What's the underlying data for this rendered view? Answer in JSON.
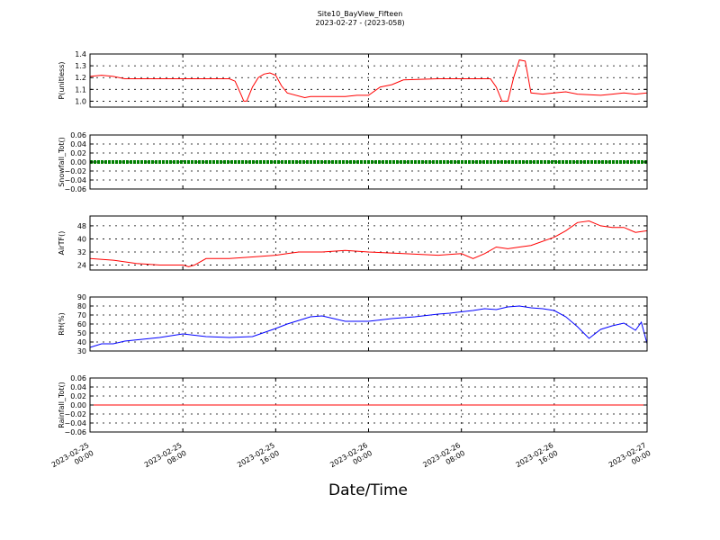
{
  "figure": {
    "title": "Site10_BayView_Fifteen",
    "subtitle": "2023-02-27 - (2023-058)",
    "xlabel": "Date/Time",
    "x_ticks": [
      {
        "value": "2023-02-25 00:00",
        "line1": "2023-02-25",
        "line2": "00:00"
      },
      {
        "value": "2023-02-25 08:00",
        "line1": "2023-02-25",
        "line2": "08:00"
      },
      {
        "value": "2023-02-25 16:00",
        "line1": "2023-02-25",
        "line2": "16:00"
      },
      {
        "value": "2023-02-26 00:00",
        "line1": "2023-02-26",
        "line2": "00:00"
      },
      {
        "value": "2023-02-26 08:00",
        "line1": "2023-02-26",
        "line2": "08:00"
      },
      {
        "value": "2023-02-26 16:00",
        "line1": "2023-02-26",
        "line2": "16:00"
      },
      {
        "value": "2023-02-27 00:00",
        "line1": "2023-02-27",
        "line2": "00:00"
      }
    ]
  },
  "chart_data": [
    {
      "type": "line",
      "ylabel": "P(unitless)",
      "ylim": [
        0.95,
        1.4
      ],
      "yticks": [
        "1.0",
        "1.1",
        "1.2",
        "1.3",
        "1.4"
      ],
      "xlim": [
        "2023-02-25 00:00",
        "2023-02-27 00:00"
      ],
      "grid": true,
      "color": "#ff0000",
      "series": [
        {
          "x": [
            "2023-02-25 00:00",
            "2023-02-25 01:00",
            "2023-02-25 02:00",
            "2023-02-25 03:00",
            "2023-02-25 06:00",
            "2023-02-25 09:00",
            "2023-02-25 12:00",
            "2023-02-25 12:30",
            "2023-02-25 13:00",
            "2023-02-25 13:15",
            "2023-02-25 13:30",
            "2023-02-25 14:00",
            "2023-02-25 14:30",
            "2023-02-25 15:00",
            "2023-02-25 15:30",
            "2023-02-25 16:00",
            "2023-02-25 16:30",
            "2023-02-25 17:00",
            "2023-02-25 18:30",
            "2023-02-25 19:00",
            "2023-02-25 22:00",
            "2023-02-25 23:00",
            "2023-02-26 00:00",
            "2023-02-26 01:00",
            "2023-02-26 02:00",
            "2023-02-26 03:00",
            "2023-02-26 06:00",
            "2023-02-26 09:00",
            "2023-02-26 10:00",
            "2023-02-26 10:30",
            "2023-02-26 11:00",
            "2023-02-26 11:30",
            "2023-02-26 12:00",
            "2023-02-26 12:30",
            "2023-02-26 13:00",
            "2023-02-26 13:30",
            "2023-02-26 14:00",
            "2023-02-26 15:00",
            "2023-02-26 16:00",
            "2023-02-26 17:00",
            "2023-02-26 18:00",
            "2023-02-26 20:00",
            "2023-02-26 21:00",
            "2023-02-26 22:00",
            "2023-02-26 23:00",
            "2023-02-27 00:00"
          ],
          "values": [
            1.21,
            1.22,
            1.21,
            1.19,
            1.19,
            1.19,
            1.19,
            1.17,
            1.06,
            1.0,
            1.0,
            1.12,
            1.2,
            1.23,
            1.24,
            1.22,
            1.13,
            1.07,
            1.03,
            1.04,
            1.04,
            1.05,
            1.05,
            1.12,
            1.14,
            1.18,
            1.19,
            1.19,
            1.19,
            1.19,
            1.12,
            1.0,
            1.0,
            1.2,
            1.35,
            1.34,
            1.07,
            1.06,
            1.07,
            1.08,
            1.06,
            1.05,
            1.06,
            1.07,
            1.06,
            1.07
          ]
        }
      ]
    },
    {
      "type": "line",
      "ylabel": "Snowfall_Tot()",
      "ylim": [
        -0.06,
        0.06
      ],
      "yticks": [
        "−0.06",
        "−0.04",
        "−0.02",
        "0.00",
        "0.02",
        "0.04",
        "0.06"
      ],
      "xlim": [
        "2023-02-25 00:00",
        "2023-02-27 00:00"
      ],
      "grid": true,
      "color": "#008000",
      "series": [
        {
          "x": [
            "2023-02-25 00:00",
            "2023-02-27 00:00"
          ],
          "values": [
            0.0,
            0.0
          ]
        }
      ]
    },
    {
      "type": "line",
      "ylabel": "AirTF()",
      "ylim": [
        21,
        54
      ],
      "yticks": [
        "24",
        "32",
        "40",
        "48"
      ],
      "xlim": [
        "2023-02-25 00:00",
        "2023-02-27 00:00"
      ],
      "grid": true,
      "color": "#ff0000",
      "series": [
        {
          "x": [
            "2023-02-25 00:00",
            "2023-02-25 02:00",
            "2023-02-25 04:00",
            "2023-02-25 06:00",
            "2023-02-25 08:00",
            "2023-02-25 08:30",
            "2023-02-25 09:00",
            "2023-02-25 10:00",
            "2023-02-25 12:00",
            "2023-02-25 14:00",
            "2023-02-25 16:00",
            "2023-02-25 17:00",
            "2023-02-25 18:00",
            "2023-02-25 20:00",
            "2023-02-25 22:00",
            "2023-02-26 00:00",
            "2023-02-26 03:00",
            "2023-02-26 06:00",
            "2023-02-26 08:00",
            "2023-02-26 09:00",
            "2023-02-26 10:00",
            "2023-02-26 11:00",
            "2023-02-26 12:00",
            "2023-02-26 13:00",
            "2023-02-26 14:00",
            "2023-02-26 16:00",
            "2023-02-26 17:00",
            "2023-02-26 18:00",
            "2023-02-26 19:00",
            "2023-02-26 20:00",
            "2023-02-26 21:00",
            "2023-02-26 22:00",
            "2023-02-26 23:00",
            "2023-02-27 00:00"
          ],
          "values": [
            28,
            27,
            25,
            24,
            24,
            23,
            24,
            28,
            28,
            29,
            30,
            31,
            32,
            32,
            33,
            32,
            31,
            30,
            31,
            28,
            31,
            35,
            34,
            35,
            36,
            41,
            45,
            50,
            51,
            48,
            47,
            47,
            44,
            45
          ]
        }
      ]
    },
    {
      "type": "line",
      "ylabel": "RH(%)",
      "ylim": [
        30,
        90
      ],
      "yticks": [
        "30",
        "40",
        "50",
        "60",
        "70",
        "80",
        "90"
      ],
      "xlim": [
        "2023-02-25 00:00",
        "2023-02-27 00:00"
      ],
      "grid": true,
      "color": "#0000ff",
      "series": [
        {
          "x": [
            "2023-02-25 00:00",
            "2023-02-25 01:00",
            "2023-02-25 02:00",
            "2023-02-25 03:00",
            "2023-02-25 06:00",
            "2023-02-25 08:00",
            "2023-02-25 10:00",
            "2023-02-25 12:00",
            "2023-02-25 14:00",
            "2023-02-25 16:00",
            "2023-02-25 17:00",
            "2023-02-25 18:00",
            "2023-02-25 19:00",
            "2023-02-25 20:00",
            "2023-02-25 21:00",
            "2023-02-25 22:00",
            "2023-02-26 00:00",
            "2023-02-26 02:00",
            "2023-02-26 04:00",
            "2023-02-26 06:00",
            "2023-02-26 07:00",
            "2023-02-26 09:00",
            "2023-02-26 10:00",
            "2023-02-26 11:00",
            "2023-02-26 12:00",
            "2023-02-26 13:00",
            "2023-02-26 14:00",
            "2023-02-26 15:00",
            "2023-02-26 16:00",
            "2023-02-26 17:00",
            "2023-02-26 18:00",
            "2023-02-26 19:00",
            "2023-02-26 20:00",
            "2023-02-26 21:00",
            "2023-02-26 22:00",
            "2023-02-26 23:00",
            "2023-02-26 23:30",
            "2023-02-27 00:00"
          ],
          "values": [
            34,
            38,
            38,
            41,
            45,
            49,
            46,
            45,
            46,
            55,
            60,
            64,
            68,
            69,
            66,
            63,
            63,
            66,
            68,
            71,
            72,
            75,
            77,
            76,
            79,
            80,
            78,
            77,
            75,
            68,
            57,
            44,
            54,
            58,
            61,
            53,
            62,
            38
          ]
        }
      ]
    },
    {
      "type": "line",
      "ylabel": "Rainfall_Tot()",
      "ylim": [
        -0.06,
        0.06
      ],
      "yticks": [
        "−0.06",
        "−0.04",
        "−0.02",
        "0.00",
        "0.02",
        "0.04",
        "0.06"
      ],
      "xlim": [
        "2023-02-25 00:00",
        "2023-02-27 00:00"
      ],
      "grid": true,
      "color": "#ff0000",
      "series": [
        {
          "x": [
            "2023-02-25 00:00",
            "2023-02-27 00:00"
          ],
          "values": [
            0.0,
            0.0
          ]
        }
      ]
    }
  ]
}
